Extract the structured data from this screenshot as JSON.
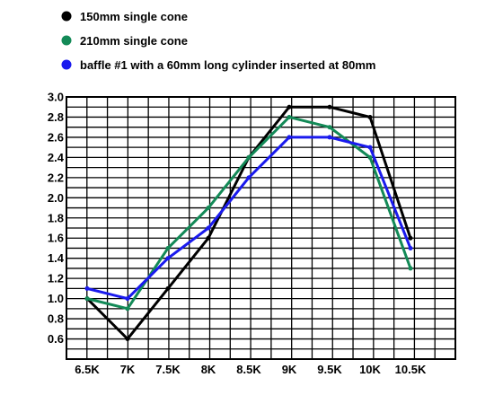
{
  "chart_data": {
    "type": "line",
    "title": "",
    "xlabel": "",
    "ylabel": "",
    "categories": [
      "6.5K",
      "7K",
      "7.5K",
      "8K",
      "8.5K",
      "9K",
      "9.5K",
      "10K",
      "10.5K"
    ],
    "x_tick_labels": [
      "6.5K",
      "7K",
      "7.5K",
      "8K",
      "8.5K",
      "9K",
      "9.5K",
      "10K",
      "10.5K"
    ],
    "y_tick_labels": [
      "3.0",
      "2.8",
      "2.6",
      "2.4",
      "2.2",
      "2.0",
      "1.8",
      "1.6",
      "1.4",
      "1.2",
      "1.0",
      "0.8",
      "0.6"
    ],
    "ylim": [
      0.4,
      3.0
    ],
    "grid": true,
    "legend_position": "top-left",
    "series": [
      {
        "name": "150mm single cone",
        "color": "#000000",
        "values": [
          1.0,
          0.6,
          1.1,
          1.6,
          2.4,
          2.9,
          2.9,
          2.8,
          1.6
        ]
      },
      {
        "name": "210mm single cone",
        "color": "#138a57",
        "values": [
          1.0,
          0.9,
          1.5,
          1.9,
          2.4,
          2.8,
          2.7,
          2.4,
          1.3
        ]
      },
      {
        "name": "baffle #1 with a 60mm long cylinder inserted at 80mm",
        "color": "#1a1aee",
        "values": [
          1.1,
          1.0,
          1.4,
          1.7,
          2.2,
          2.6,
          2.6,
          2.5,
          1.5
        ]
      }
    ]
  }
}
